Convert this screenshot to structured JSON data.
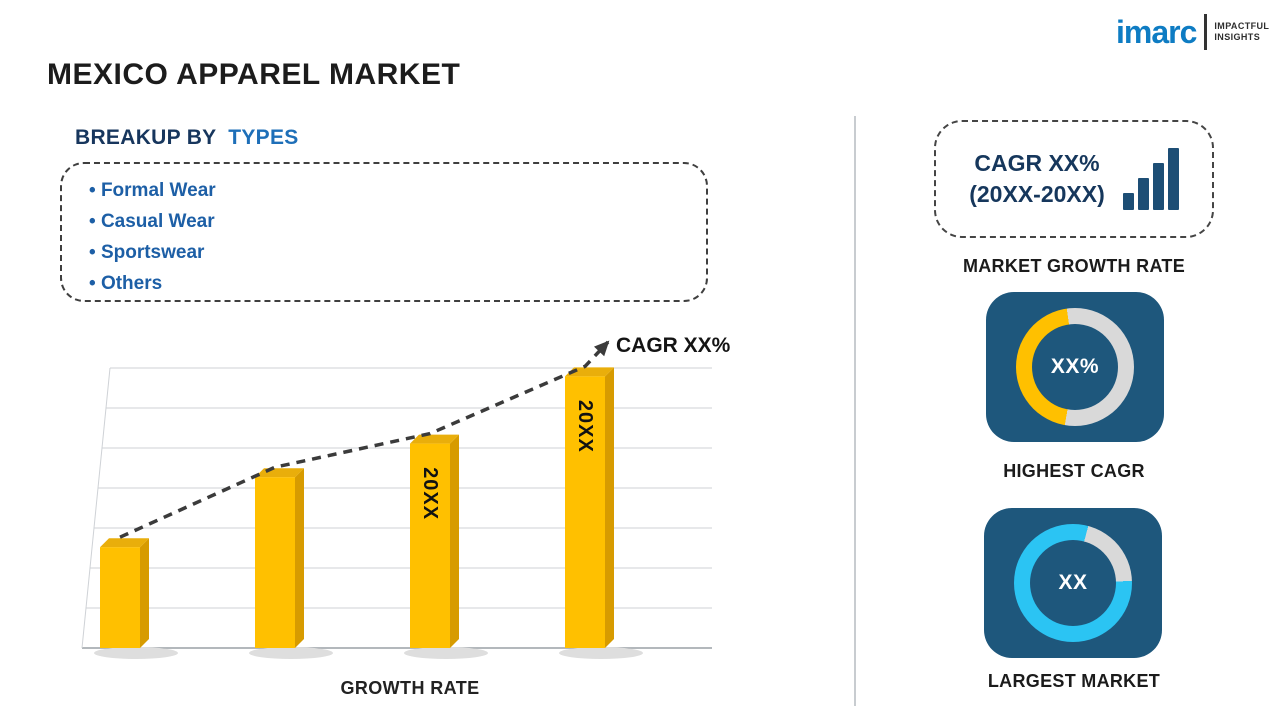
{
  "header": {
    "title": "MEXICO APPAREL MARKET"
  },
  "logo": {
    "brand": "imarc",
    "tagline": [
      "IMPACTFUL",
      "INSIGHTS"
    ]
  },
  "breakup": {
    "heading_prefix": "BREAKUP BY",
    "heading_highlight": "TYPES",
    "items": [
      "Formal Wear",
      "Casual Wear",
      "Sportswear",
      "Others"
    ]
  },
  "chart_data": {
    "type": "bar",
    "caption": "GROWTH RATE",
    "trend_label": "CAGR XX%",
    "bar_labels": [
      "",
      "",
      "20XX",
      "20XX"
    ],
    "values_pct_est": [
      36,
      61,
      73,
      97
    ],
    "ylim": [
      0,
      100
    ],
    "grid": true,
    "axis_values_shown": false,
    "bar_color": "#FFC000",
    "bar_side_color": "#D79B00",
    "bar_top_color": "#E9AE0B",
    "trend_color": "#3B3B3B"
  },
  "sidebar": {
    "growth_box": {
      "line1": "CAGR XX%",
      "line2": "(20XX-20XX)"
    },
    "growth_box_label": "MARKET GROWTH RATE",
    "highest_cagr": {
      "value": "XX%",
      "label": "HIGHEST CAGR",
      "ring_segments": [
        [
          "#D9D9D9",
          0,
          190
        ],
        [
          "#FFC000",
          190,
          352
        ],
        [
          "#D9D9D9",
          352,
          360
        ]
      ]
    },
    "largest_market": {
      "value": "XX",
      "label": "LARGEST MARKET",
      "ring_segments": [
        [
          "#2BC4F3",
          0,
          15
        ],
        [
          "#D9D9D9",
          15,
          88
        ],
        [
          "#2BC4F3",
          88,
          360
        ]
      ]
    }
  },
  "colors": {
    "logo_blue": "#0E7CC3",
    "navy_heading": "#17365D",
    "accent_blue": "#1E6FB8",
    "list_blue": "#1D5FA6",
    "bar_yellow": "#FFC000",
    "cyan": "#2BC4F3",
    "card_navy": "#1E577C",
    "ring_gray": "#D9D9D9"
  }
}
